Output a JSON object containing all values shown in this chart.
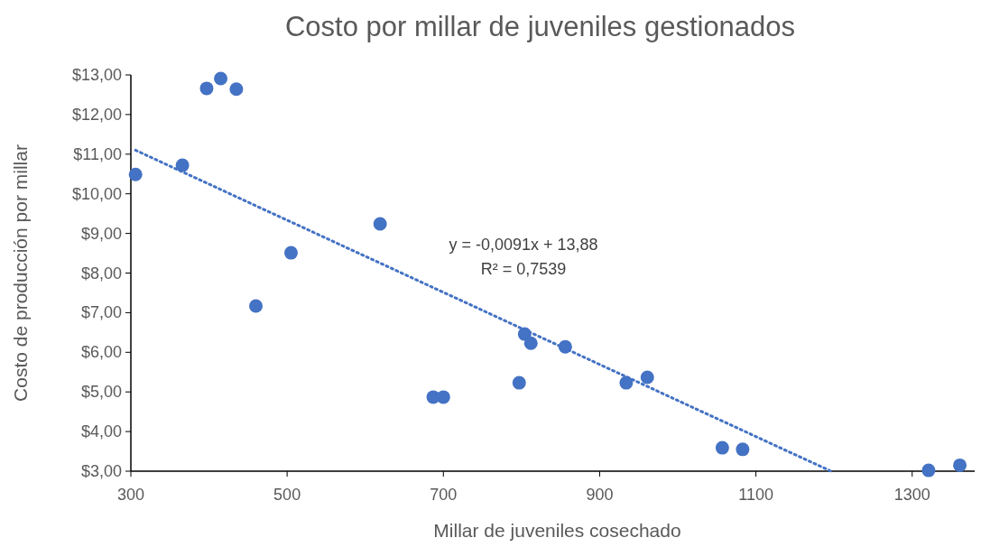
{
  "chart_data": {
    "type": "scatter",
    "title": "Costo por millar de juveniles gestionados",
    "xlabel": "Millar de juveniles cosechado",
    "ylabel": "Costo de producción por millar",
    "xlim": [
      300,
      1380
    ],
    "xticks": [
      300,
      500,
      700,
      900,
      1100,
      1300
    ],
    "ylim": [
      3,
      13
    ],
    "yticks": [
      {
        "value": 3,
        "label": "$3,00"
      },
      {
        "value": 4,
        "label": "$4,00"
      },
      {
        "value": 5,
        "label": "$5,00"
      },
      {
        "value": 6,
        "label": "$6,00"
      },
      {
        "value": 7,
        "label": "$7,00"
      },
      {
        "value": 8,
        "label": "$8,00"
      },
      {
        "value": 9,
        "label": "$9,00"
      },
      {
        "value": 10,
        "label": "$10,00"
      },
      {
        "value": 11,
        "label": "$11,00"
      },
      {
        "value": 12,
        "label": "$12,00"
      },
      {
        "value": 13,
        "label": "$13,00"
      }
    ],
    "grid": false,
    "series": [
      {
        "color": "#4472c4",
        "marker": "circle",
        "x": [
          306,
          366,
          397,
          415,
          435,
          460,
          505,
          619,
          687,
          700,
          797,
          804,
          812,
          856,
          934,
          961,
          1057,
          1083,
          1321,
          1361
        ],
        "values": [
          10.49,
          10.72,
          12.66,
          12.91,
          12.64,
          7.17,
          8.51,
          9.24,
          4.87,
          4.87,
          5.23,
          6.46,
          6.23,
          6.14,
          5.23,
          5.37,
          3.59,
          3.55,
          3.02,
          3.15
        ]
      },
      {
        "type": "line",
        "color": "#4472c4",
        "line_style": "dotted",
        "marker": "none",
        "x": [
          306,
          1196
        ],
        "values": [
          11.1,
          3.0
        ]
      }
    ],
    "annotations": [
      "y = -0,0091x + 13,88",
      "R² = 0,7539"
    ]
  }
}
